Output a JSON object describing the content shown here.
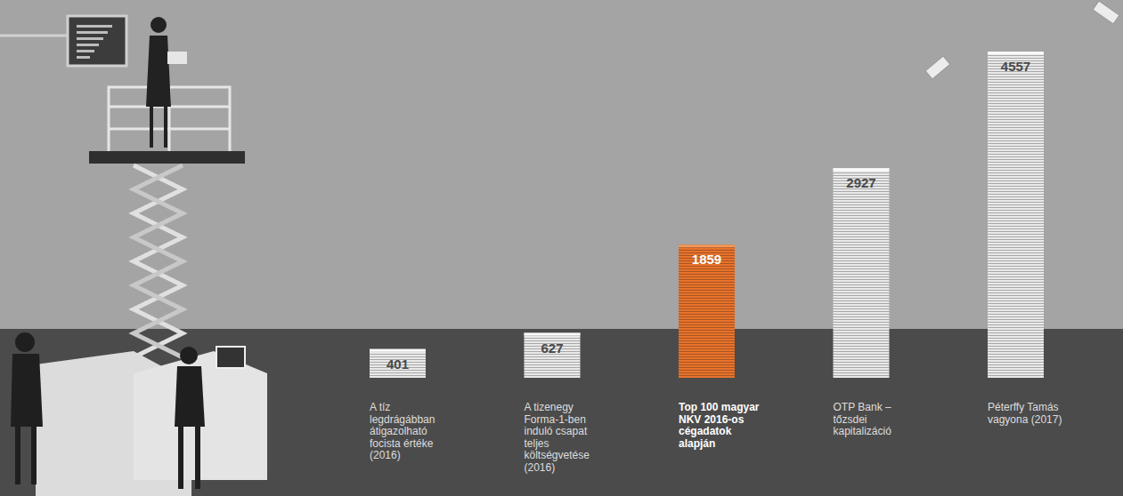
{
  "chart_data": {
    "type": "bar",
    "categories": [
      "A tíz legdrágábban átigazolható focista értéke (2016)",
      "A tizenegy Forma-1-ben induló csapat teljes költségvetése (2016)",
      "Top 100 magyar NKV 2016-os cégadatok alapján",
      "OTP Bank – tőzsdei kapitalizáció",
      "Péterffy Tamás vagyona (2017)"
    ],
    "values": [
      401,
      627,
      1859,
      2927,
      4557
    ],
    "colors": [
      "#e9e9e9",
      "#e9e9e9",
      "#e8732c",
      "#e9e9e9",
      "#e9e9e9"
    ],
    "data_labels": true,
    "tick_labels": false
  }
}
